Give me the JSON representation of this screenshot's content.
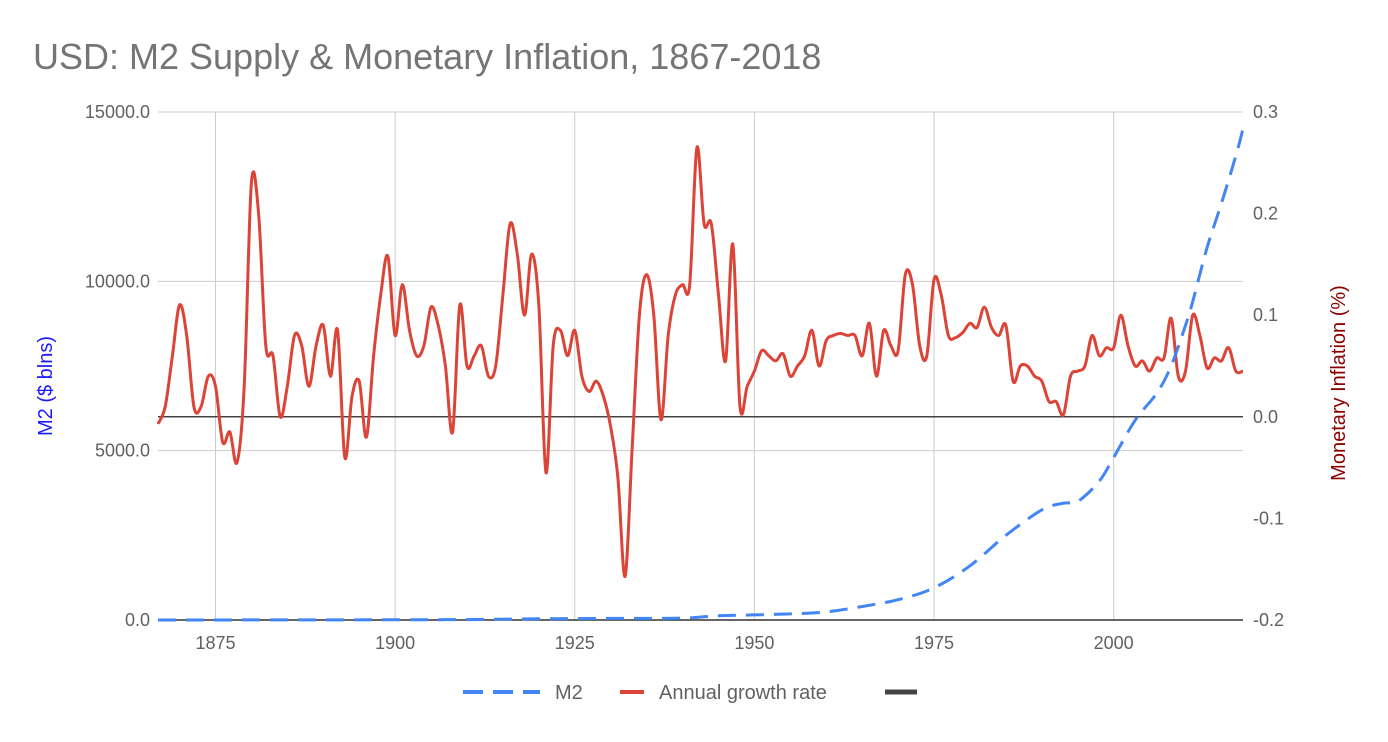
{
  "chart_data": {
    "type": "line",
    "title": "USD: M2 Supply & Monetary Inflation, 1867-2018",
    "xlabel": "",
    "y_left_label": "M2 ($ blns)",
    "y_right_label": "Monetary Inflation (%)",
    "xlim": [
      1867,
      2018
    ],
    "y_left_lim": [
      0,
      15000
    ],
    "y_right_lim": [
      -0.2,
      0.3
    ],
    "x_ticks": [
      1875,
      1900,
      1925,
      1950,
      1975,
      2000
    ],
    "x_tick_labels": [
      "1875",
      "1900",
      "1925",
      "1950",
      "1975",
      "2000"
    ],
    "y_left_ticks": [
      0,
      5000,
      10000,
      15000
    ],
    "y_left_tick_labels": [
      "0.0",
      "5000.0",
      "10000.0",
      "15000.0"
    ],
    "y_right_ticks": [
      -0.2,
      -0.1,
      0.0,
      0.1,
      0.2,
      0.3
    ],
    "y_right_tick_labels": [
      "-0.2",
      "-0.1",
      "0.0",
      "0.1",
      "0.2",
      "0.3"
    ],
    "legend_position": "bottom",
    "colors": {
      "m2": "#4285f4",
      "growth": "#db4437",
      "zero": "#444444",
      "grid": "#cccccc"
    },
    "series": [
      {
        "name": "M2",
        "axis": "left",
        "style": "dashed",
        "points": [
          [
            1867,
            1
          ],
          [
            1880,
            2
          ],
          [
            1900,
            7
          ],
          [
            1910,
            13
          ],
          [
            1920,
            35
          ],
          [
            1930,
            46
          ],
          [
            1940,
            55
          ],
          [
            1945,
            127
          ],
          [
            1950,
            151
          ],
          [
            1955,
            180
          ],
          [
            1960,
            240
          ],
          [
            1965,
            400
          ],
          [
            1970,
            600
          ],
          [
            1975,
            950
          ],
          [
            1980,
            1600
          ],
          [
            1985,
            2500
          ],
          [
            1990,
            3250
          ],
          [
            1993,
            3450
          ],
          [
            1995,
            3500
          ],
          [
            1998,
            4100
          ],
          [
            2000,
            4800
          ],
          [
            2003,
            5900
          ],
          [
            2006,
            6700
          ],
          [
            2008,
            7500
          ],
          [
            2010,
            8700
          ],
          [
            2011,
            9400
          ],
          [
            2013,
            11000
          ],
          [
            2015,
            12300
          ],
          [
            2017,
            13700
          ],
          [
            2018,
            14500
          ]
        ]
      },
      {
        "name": "Annual growth rate",
        "axis": "right",
        "style": "solid",
        "points": [
          [
            1867,
            -0.007
          ],
          [
            1868,
            0.01
          ],
          [
            1869,
            0.06
          ],
          [
            1870,
            0.11
          ],
          [
            1871,
            0.08
          ],
          [
            1872,
            0.01
          ],
          [
            1873,
            0.01
          ],
          [
            1874,
            0.04
          ],
          [
            1875,
            0.03
          ],
          [
            1876,
            -0.025
          ],
          [
            1877,
            -0.015
          ],
          [
            1878,
            -0.045
          ],
          [
            1879,
            0.03
          ],
          [
            1880,
            0.23
          ],
          [
            1881,
            0.2
          ],
          [
            1882,
            0.07
          ],
          [
            1883,
            0.06
          ],
          [
            1884,
            0.0
          ],
          [
            1885,
            0.03
          ],
          [
            1886,
            0.08
          ],
          [
            1887,
            0.07
          ],
          [
            1888,
            0.03
          ],
          [
            1889,
            0.07
          ],
          [
            1890,
            0.09
          ],
          [
            1891,
            0.04
          ],
          [
            1892,
            0.085
          ],
          [
            1893,
            -0.04
          ],
          [
            1894,
            0.02
          ],
          [
            1895,
            0.035
          ],
          [
            1896,
            -0.02
          ],
          [
            1897,
            0.06
          ],
          [
            1898,
            0.12
          ],
          [
            1899,
            0.158
          ],
          [
            1900,
            0.08
          ],
          [
            1901,
            0.13
          ],
          [
            1902,
            0.085
          ],
          [
            1903,
            0.06
          ],
          [
            1904,
            0.07
          ],
          [
            1905,
            0.108
          ],
          [
            1906,
            0.09
          ],
          [
            1907,
            0.05
          ],
          [
            1908,
            -0.015
          ],
          [
            1909,
            0.11
          ],
          [
            1910,
            0.05
          ],
          [
            1911,
            0.06
          ],
          [
            1912,
            0.07
          ],
          [
            1913,
            0.04
          ],
          [
            1914,
            0.05
          ],
          [
            1915,
            0.12
          ],
          [
            1916,
            0.19
          ],
          [
            1917,
            0.16
          ],
          [
            1918,
            0.1
          ],
          [
            1919,
            0.16
          ],
          [
            1920,
            0.11
          ],
          [
            1921,
            -0.055
          ],
          [
            1922,
            0.07
          ],
          [
            1923,
            0.085
          ],
          [
            1924,
            0.06
          ],
          [
            1925,
            0.085
          ],
          [
            1926,
            0.04
          ],
          [
            1927,
            0.025
          ],
          [
            1928,
            0.035
          ],
          [
            1929,
            0.02
          ],
          [
            1930,
            -0.01
          ],
          [
            1931,
            -0.06
          ],
          [
            1932,
            -0.157
          ],
          [
            1933,
            -0.03
          ],
          [
            1934,
            0.1
          ],
          [
            1935,
            0.14
          ],
          [
            1936,
            0.1
          ],
          [
            1937,
            -0.003
          ],
          [
            1938,
            0.08
          ],
          [
            1939,
            0.12
          ],
          [
            1940,
            0.13
          ],
          [
            1941,
            0.13
          ],
          [
            1942,
            0.265
          ],
          [
            1943,
            0.19
          ],
          [
            1944,
            0.19
          ],
          [
            1945,
            0.12
          ],
          [
            1946,
            0.055
          ],
          [
            1947,
            0.17
          ],
          [
            1948,
            0.01
          ],
          [
            1949,
            0.03
          ],
          [
            1950,
            0.045
          ],
          [
            1951,
            0.065
          ],
          [
            1952,
            0.06
          ],
          [
            1953,
            0.055
          ],
          [
            1954,
            0.062
          ],
          [
            1955,
            0.04
          ],
          [
            1956,
            0.05
          ],
          [
            1957,
            0.06
          ],
          [
            1958,
            0.085
          ],
          [
            1959,
            0.05
          ],
          [
            1960,
            0.075
          ],
          [
            1961,
            0.08
          ],
          [
            1962,
            0.082
          ],
          [
            1963,
            0.08
          ],
          [
            1964,
            0.08
          ],
          [
            1965,
            0.06
          ],
          [
            1966,
            0.092
          ],
          [
            1967,
            0.04
          ],
          [
            1968,
            0.085
          ],
          [
            1969,
            0.07
          ],
          [
            1970,
            0.065
          ],
          [
            1971,
            0.14
          ],
          [
            1972,
            0.13
          ],
          [
            1973,
            0.07
          ],
          [
            1974,
            0.06
          ],
          [
            1975,
            0.135
          ],
          [
            1976,
            0.12
          ],
          [
            1977,
            0.08
          ],
          [
            1978,
            0.078
          ],
          [
            1979,
            0.083
          ],
          [
            1980,
            0.092
          ],
          [
            1981,
            0.088
          ],
          [
            1982,
            0.108
          ],
          [
            1983,
            0.088
          ],
          [
            1984,
            0.08
          ],
          [
            1985,
            0.09
          ],
          [
            1986,
            0.035
          ],
          [
            1987,
            0.05
          ],
          [
            1988,
            0.05
          ],
          [
            1989,
            0.04
          ],
          [
            1990,
            0.035
          ],
          [
            1991,
            0.015
          ],
          [
            1992,
            0.015
          ],
          [
            1993,
            0.002
          ],
          [
            1994,
            0.04
          ],
          [
            1995,
            0.045
          ],
          [
            1996,
            0.05
          ],
          [
            1997,
            0.08
          ],
          [
            1998,
            0.06
          ],
          [
            1999,
            0.068
          ],
          [
            2000,
            0.068
          ],
          [
            2001,
            0.1
          ],
          [
            2002,
            0.07
          ],
          [
            2003,
            0.05
          ],
          [
            2004,
            0.055
          ],
          [
            2005,
            0.045
          ],
          [
            2006,
            0.058
          ],
          [
            2007,
            0.058
          ],
          [
            2008,
            0.097
          ],
          [
            2009,
            0.04
          ],
          [
            2010,
            0.045
          ],
          [
            2011,
            0.1
          ],
          [
            2012,
            0.08
          ],
          [
            2013,
            0.048
          ],
          [
            2014,
            0.058
          ],
          [
            2015,
            0.055
          ],
          [
            2016,
            0.068
          ],
          [
            2017,
            0.045
          ],
          [
            2018,
            0.045
          ]
        ]
      },
      {
        "name": "",
        "axis": "right",
        "style": "solid",
        "points": [
          [
            1867,
            0.0
          ],
          [
            2018,
            0.0
          ]
        ]
      }
    ],
    "legend": [
      {
        "label": "M2",
        "style": "dashed",
        "color_key": "m2"
      },
      {
        "label": "Annual growth rate",
        "style": "solid",
        "color_key": "growth"
      },
      {
        "label": "",
        "style": "solid",
        "color_key": "zero"
      }
    ]
  }
}
